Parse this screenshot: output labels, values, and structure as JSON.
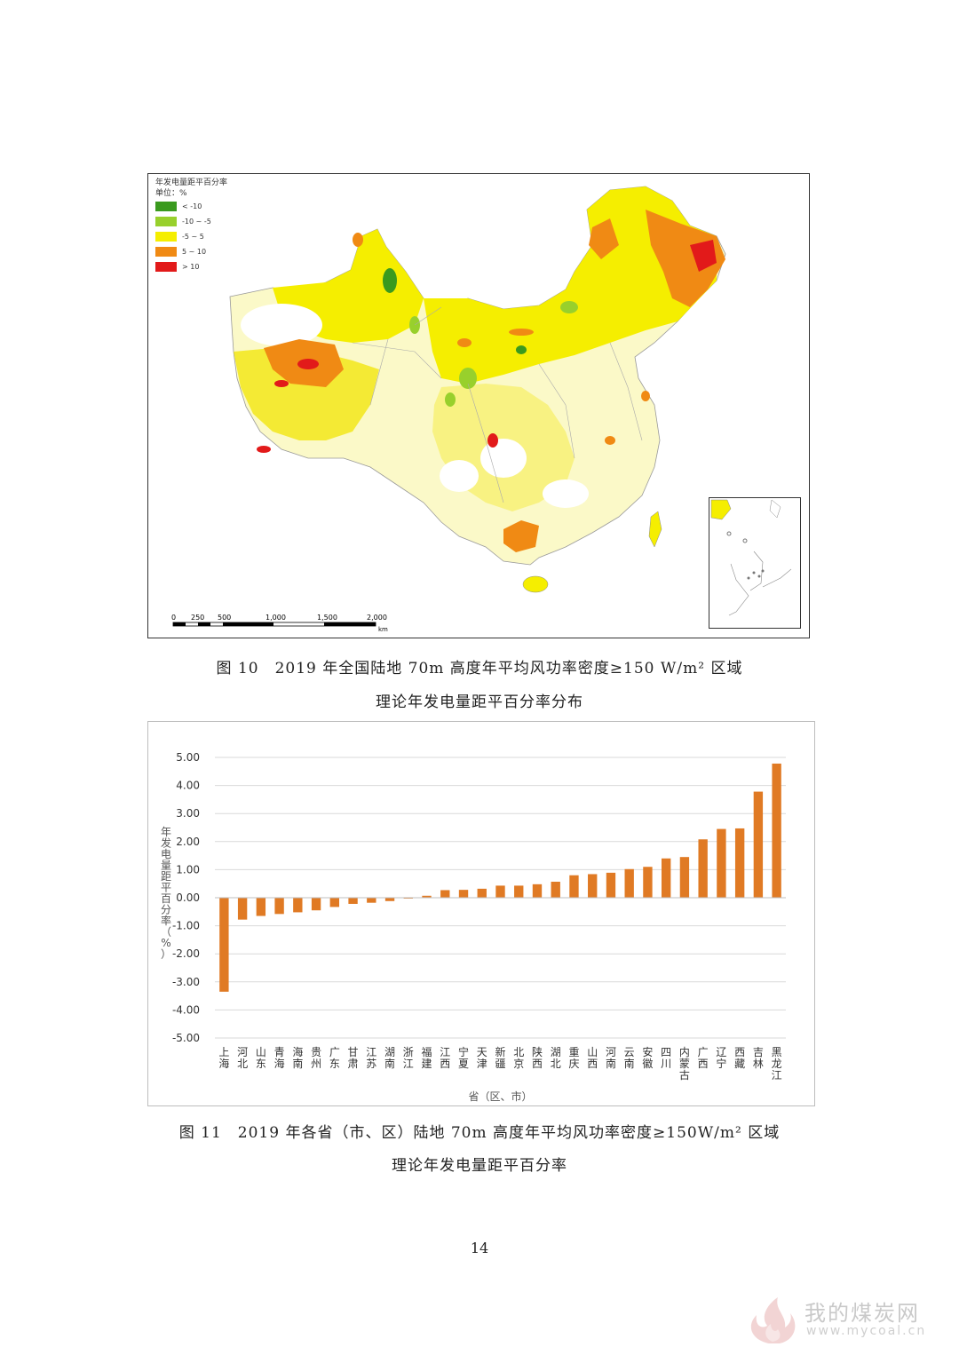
{
  "map": {
    "legend_title": "年发电量距平百分率",
    "legend_unit": "单位：%",
    "legend_items": [
      {
        "label": "< -10",
        "color": "#3a9a1e"
      },
      {
        "label": "-10 ~ -5",
        "color": "#98d02c"
      },
      {
        "label": "-5 ~ 5",
        "color": "#f5ee00"
      },
      {
        "label": "5 ~ 10",
        "color": "#f08a14"
      },
      {
        "label": "> 10",
        "color": "#e21a1a"
      }
    ],
    "scale": {
      "ticks": [
        "0",
        "250",
        "500",
        "1,000",
        "1,500",
        "2,000"
      ],
      "unit": "km"
    }
  },
  "captions": {
    "fig10_line1": "图 10　2019 年全国陆地 70m 高度年平均风功率密度≥150 W/m² 区域",
    "fig10_line2": "理论年发电量距平百分率分布",
    "fig11_line1": "图 11　2019 年各省（市、区）陆地 70m 高度年平均风功率密度≥150W/m² 区域",
    "fig11_line2": "理论年发电量距平百分率"
  },
  "chart_data": {
    "type": "bar",
    "ylabel": "年发电量距平百分率（%）",
    "xlabel": "省（区、市）",
    "ylim": [
      -5,
      5
    ],
    "yticks": [
      "5.00",
      "4.00",
      "3.00",
      "2.00",
      "1.00",
      "0.00",
      "-1.00",
      "-2.00",
      "-3.00",
      "-4.00",
      "-5.00"
    ],
    "grid": true,
    "bar_color": "#e07a24",
    "categories": [
      "上海",
      "河北",
      "山东",
      "青海",
      "海南",
      "贵州",
      "广东",
      "甘肃",
      "江苏",
      "湖南",
      "浙江",
      "福建",
      "江西",
      "宁夏",
      "天津",
      "新疆",
      "北京",
      "陕西",
      "湖北",
      "重庆",
      "山西",
      "河南",
      "云南",
      "安徽",
      "四川",
      "内蒙古",
      "广西",
      "辽宁",
      "西藏",
      "吉林",
      "黑龙江"
    ],
    "values": [
      -3.35,
      -0.78,
      -0.65,
      -0.58,
      -0.52,
      -0.45,
      -0.33,
      -0.22,
      -0.18,
      -0.12,
      -0.03,
      0.07,
      0.27,
      0.28,
      0.32,
      0.43,
      0.43,
      0.48,
      0.57,
      0.8,
      0.84,
      0.89,
      1.02,
      1.1,
      1.4,
      1.45,
      2.08,
      2.45,
      2.47,
      3.78,
      4.78
    ]
  },
  "page_number": "14",
  "watermark": {
    "name": "我的煤炭网",
    "url": "www.mycoal.cn"
  }
}
